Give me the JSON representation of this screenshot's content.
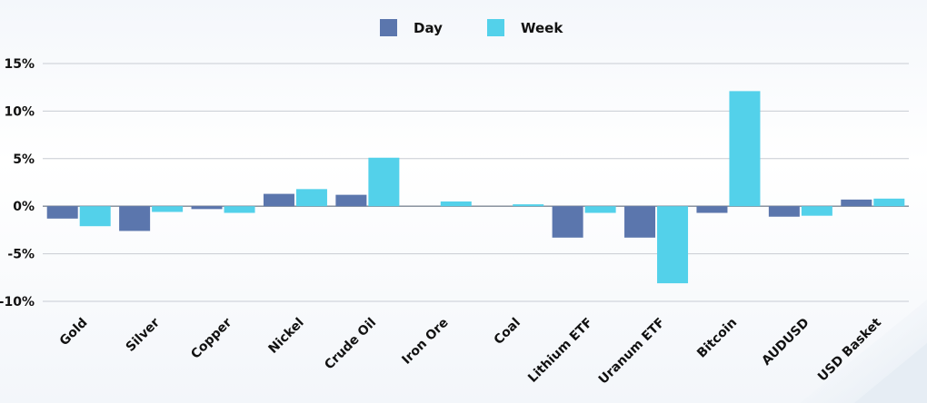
{
  "chart_data": {
    "type": "bar",
    "categories": [
      "Gold",
      "Silver",
      "Copper",
      "Nickel",
      "Crude Oil",
      "Iron Ore",
      "Coal",
      "Lithium ETF",
      "Uranum ETF",
      "Bitcoin",
      "AUDUSD",
      "USD Basket"
    ],
    "series": [
      {
        "name": "Day",
        "color": "#5b76ad",
        "values": [
          -1.3,
          -2.6,
          -0.3,
          1.3,
          1.2,
          0.0,
          0.0,
          -3.3,
          -3.3,
          -0.7,
          -1.1,
          0.7
        ]
      },
      {
        "name": "Week",
        "color": "#53d1ea",
        "values": [
          -2.1,
          -0.6,
          -0.7,
          1.8,
          5.1,
          0.5,
          0.2,
          -0.7,
          -8.1,
          12.1,
          -1.0,
          0.8
        ]
      }
    ],
    "ylim": [
      -10,
      15
    ],
    "yticks": [
      15,
      10,
      5,
      0,
      -5,
      -10
    ],
    "ytick_labels": [
      "15%",
      "10%",
      "5%",
      "0%",
      "-5%",
      "-10%"
    ],
    "grid": true,
    "legend": "top-center"
  }
}
